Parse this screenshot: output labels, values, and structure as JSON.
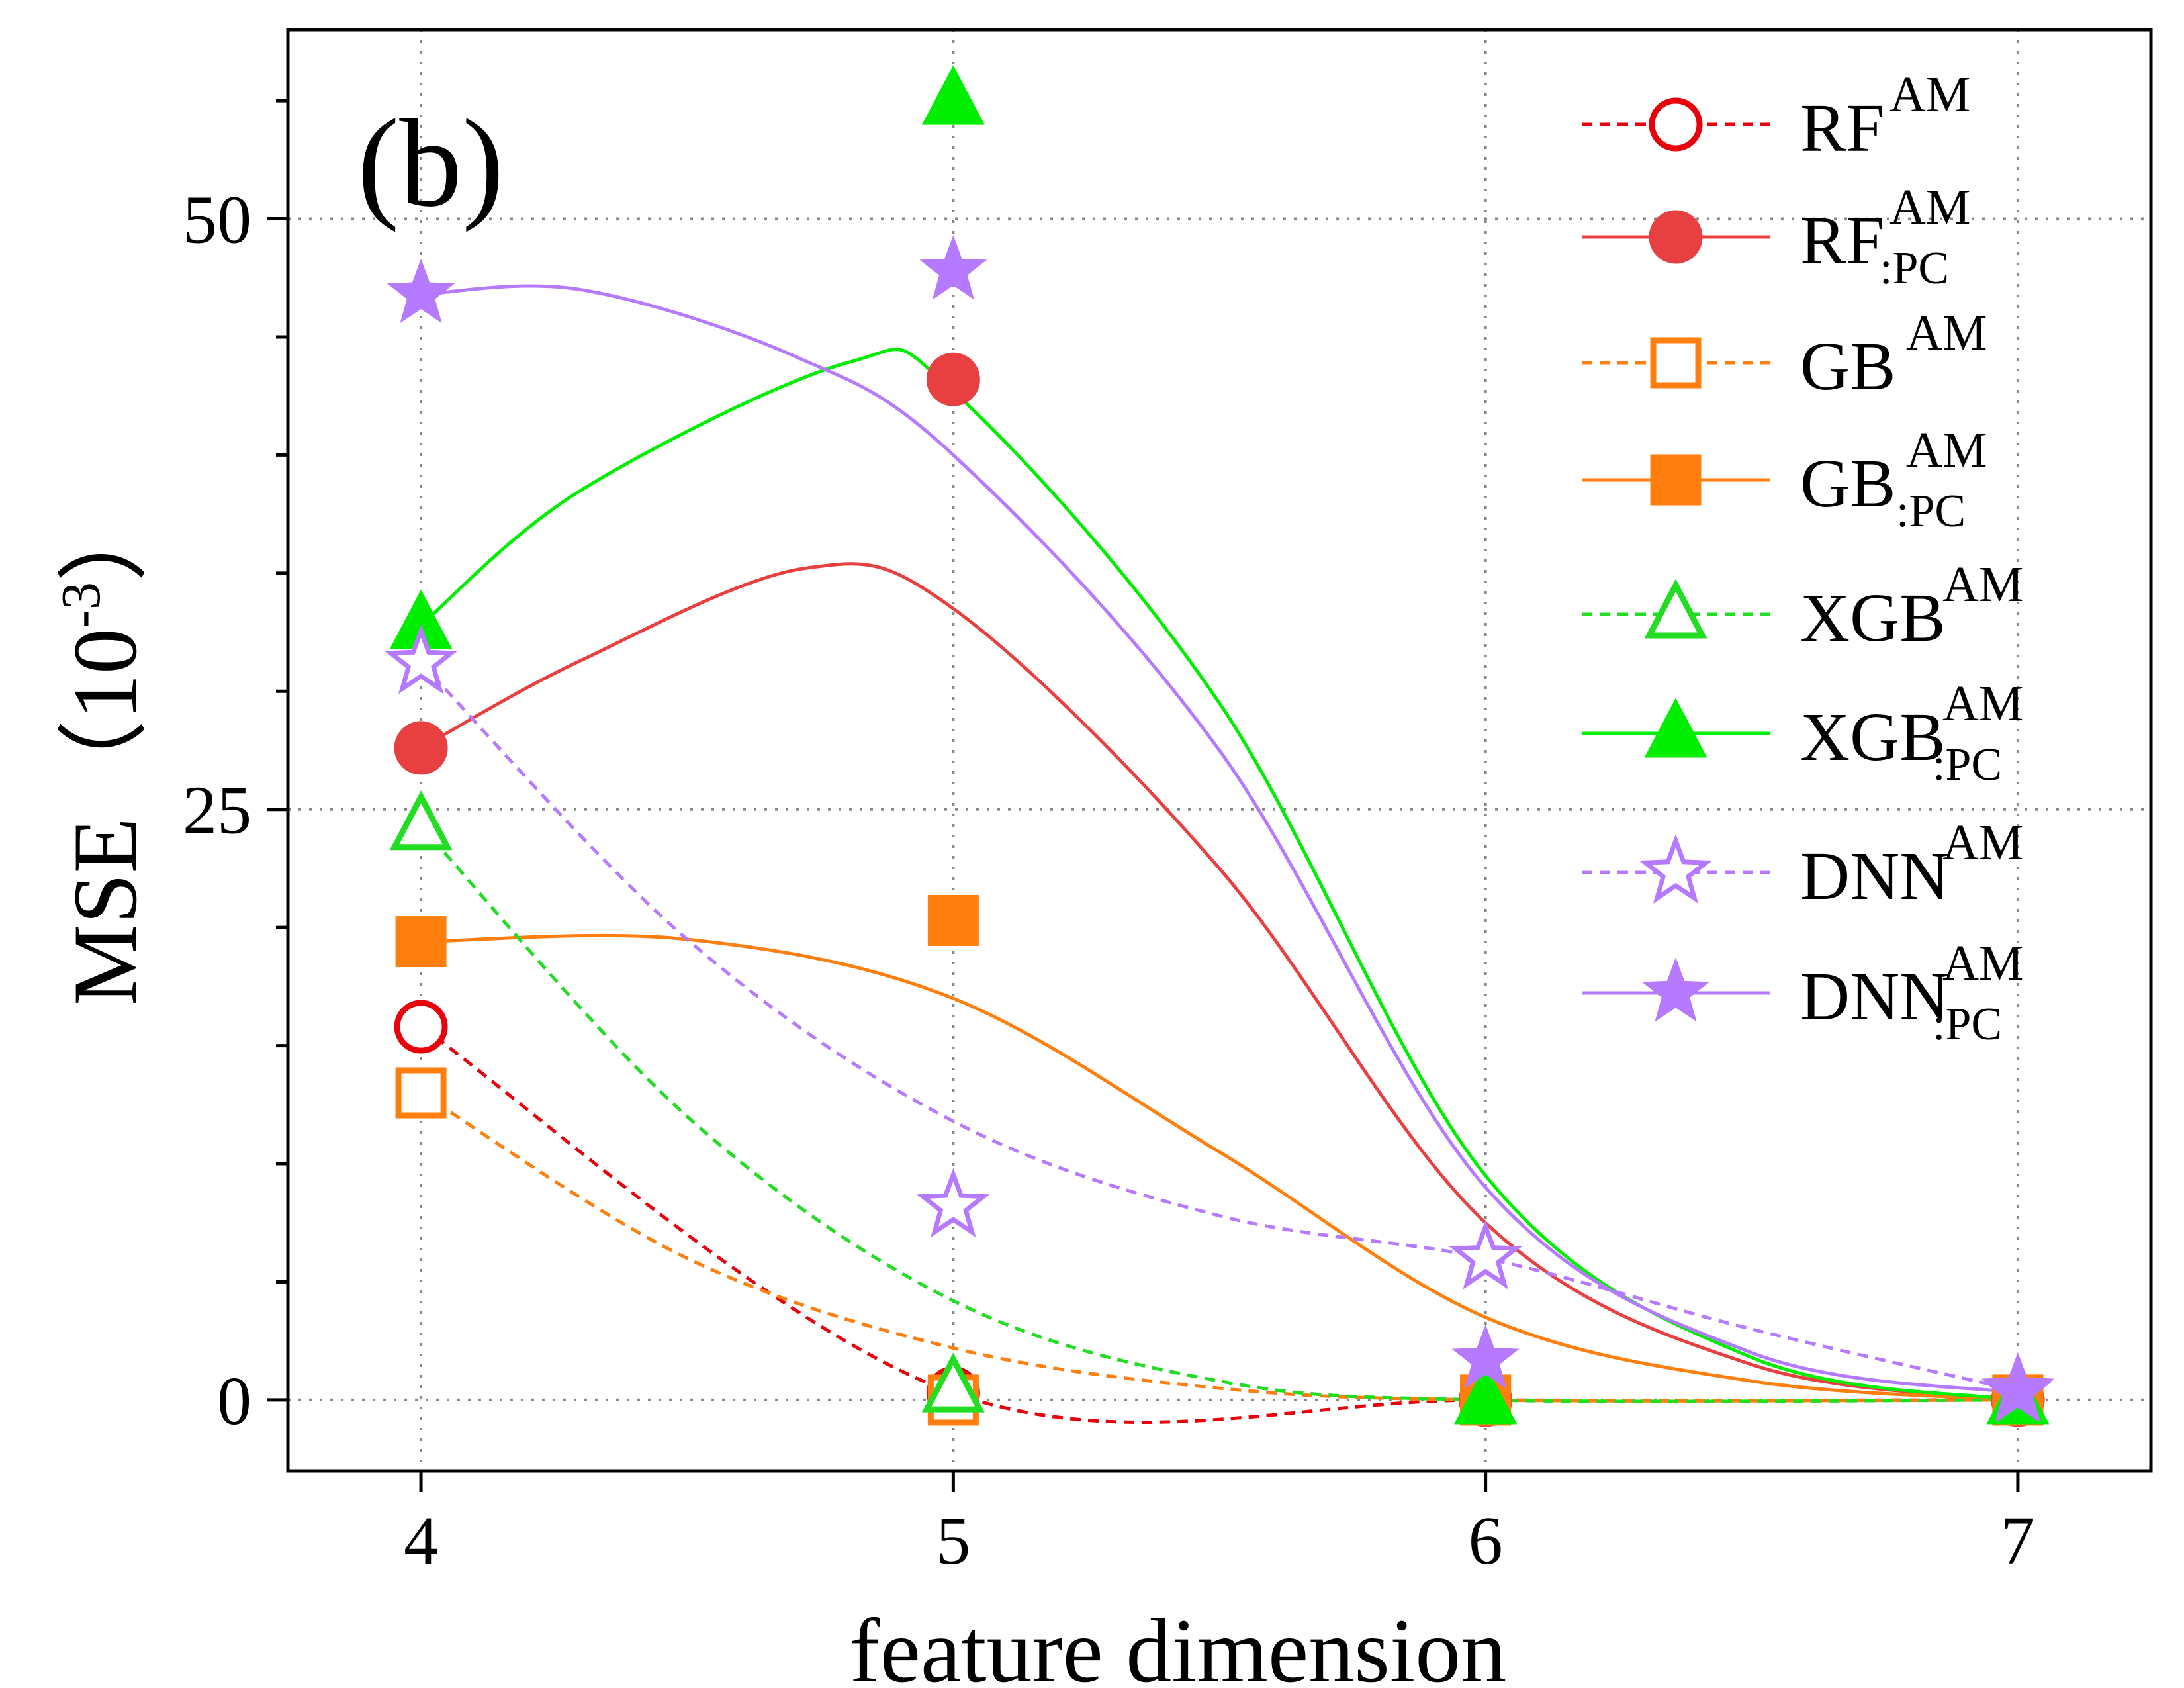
{
  "chart_data": {
    "type": "line",
    "panel_label": "(b)",
    "xlabel": "feature dimension",
    "ylabel": "MSE",
    "ylabel_unit_open": "（",
    "ylabel_unit_base": "10",
    "ylabel_unit_exp": "-3",
    "ylabel_unit_close": "）",
    "x_ticks": [
      4,
      5,
      6,
      7
    ],
    "y_ticks": [
      0,
      25,
      50
    ],
    "xlim": [
      3.75,
      7.25
    ],
    "ylim": [
      -3,
      58
    ],
    "grid": true,
    "legend_position": "top-right",
    "x": [
      4,
      5,
      6,
      7
    ],
    "series": [
      {
        "name": "RF",
        "sup": "AM",
        "sub": "",
        "values": [
          15.8,
          0.3,
          0.0,
          0.0
        ],
        "color": "#e8000b",
        "marker": "circle",
        "filled": false,
        "line": "dashed",
        "smooth": [
          [
            4,
            15.8
          ],
          [
            5,
            0.3
          ],
          [
            6,
            0.0
          ],
          [
            7,
            0.0
          ]
        ]
      },
      {
        "name": "RF",
        "sup": "AM",
        "sub": ":PC",
        "values": [
          27.6,
          43.2,
          0.0,
          0.0
        ],
        "color": "#e84040",
        "marker": "circle",
        "filled": true,
        "line": "solid",
        "smooth": [
          [
            4,
            27.6
          ],
          [
            4.3,
            31.3
          ],
          [
            4.72,
            35.2
          ],
          [
            5,
            33.5
          ],
          [
            5.5,
            22.5
          ],
          [
            6,
            7.5
          ],
          [
            6.5,
            1.5
          ],
          [
            7,
            0.0
          ]
        ]
      },
      {
        "name": "GB",
        "sup": "AM",
        "sub": "",
        "values": [
          13.0,
          0.0,
          0.0,
          0.0
        ],
        "color": "#ff7f0e",
        "marker": "square",
        "filled": false,
        "line": "dashed",
        "smooth": [
          [
            4,
            13.0
          ],
          [
            4.5,
            6.0
          ],
          [
            5,
            2.2
          ],
          [
            5.5,
            0.5
          ],
          [
            6,
            0.0
          ],
          [
            7,
            0.0
          ]
        ]
      },
      {
        "name": "GB",
        "sup": "AM",
        "sub": ":PC",
        "values": [
          19.4,
          20.3,
          0.0,
          0.0
        ],
        "color": "#ff7f0e",
        "marker": "square",
        "filled": true,
        "line": "solid",
        "smooth": [
          [
            4,
            19.4
          ],
          [
            4.5,
            19.5
          ],
          [
            5,
            17.0
          ],
          [
            5.5,
            10.5
          ],
          [
            6,
            3.5
          ],
          [
            6.5,
            0.8
          ],
          [
            7,
            0.0
          ]
        ]
      },
      {
        "name": "XGB",
        "sup": "AM",
        "sub": "",
        "values": [
          24.3,
          0.5,
          0.0,
          0.0
        ],
        "color": "#22dd22",
        "marker": "triangle",
        "filled": false,
        "line": "dashed",
        "smooth": [
          [
            4,
            24.3
          ],
          [
            4.5,
            12.0
          ],
          [
            5,
            4.2
          ],
          [
            5.5,
            0.8
          ],
          [
            6,
            0.0
          ],
          [
            7,
            0.0
          ]
        ]
      },
      {
        "name": "XGB",
        "sup": "AM",
        "sub": ":PC",
        "values": [
          32.8,
          55.0,
          0.0,
          0.0
        ],
        "color": "#00ee00",
        "marker": "triangle",
        "filled": true,
        "line": "solid",
        "smooth": [
          [
            4,
            32.8
          ],
          [
            4.3,
            38.5
          ],
          [
            4.8,
            43.9
          ],
          [
            5,
            42.7
          ],
          [
            5.5,
            29.5
          ],
          [
            6,
            9.5
          ],
          [
            6.5,
            1.8
          ],
          [
            7,
            0.0
          ]
        ]
      },
      {
        "name": "DNN",
        "sup": "AM",
        "sub": "",
        "values": [
          31.2,
          8.2,
          6.0,
          0.4
        ],
        "color": "#b57aff",
        "marker": "star",
        "filled": false,
        "line": "dashed",
        "smooth": [
          [
            4,
            31.2
          ],
          [
            4.5,
            19.5
          ],
          [
            5,
            11.8
          ],
          [
            5.5,
            7.8
          ],
          [
            6,
            6.0
          ],
          [
            6.5,
            3.0
          ],
          [
            7,
            0.4
          ]
        ]
      },
      {
        "name": "DNN",
        "sup": "AM",
        "sub": ":PC",
        "values": [
          46.8,
          47.8,
          1.7,
          0.3
        ],
        "color": "#b57aff",
        "marker": "star",
        "filled": true,
        "line": "solid",
        "smooth": [
          [
            4,
            46.8
          ],
          [
            4.3,
            47.0
          ],
          [
            4.7,
            44.2
          ],
          [
            5,
            40.0
          ],
          [
            5.5,
            27.5
          ],
          [
            6,
            9.0
          ],
          [
            6.5,
            2.0
          ],
          [
            7,
            0.3
          ]
        ]
      }
    ]
  }
}
